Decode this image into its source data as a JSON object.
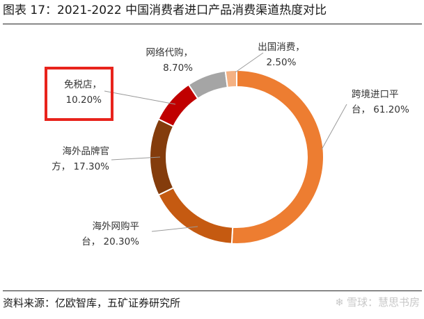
{
  "title": "图表 17：2021-2022 中国消费者进口产品消费渠道热度对比",
  "source": "资料来源：亿欧智库，五矿证券研究所",
  "watermark": "雪球：慧思书房",
  "highlight_color": "#e8231c",
  "chart_data": {
    "type": "pie",
    "style": "donut",
    "start": "top, clockwise",
    "slices": [
      {
        "name": "跨境进口平台",
        "value": 61.2,
        "label_line1": "跨境进口平",
        "label_line2": "台， 61.20%",
        "color": "#ed7d31"
      },
      {
        "name": "海外网购平台",
        "value": 20.3,
        "label_line1": "海外网购平",
        "label_line2": "台， 20.30%",
        "color": "#c55a11"
      },
      {
        "name": "海外品牌官方",
        "value": 17.3,
        "label_line1": "海外品牌官",
        "label_line2": "方， 17.30%",
        "color": "#843c0c"
      },
      {
        "name": "免税店",
        "value": 10.2,
        "label_line1": "免税店，",
        "label_line2": "10.20%",
        "color": "#c00000",
        "highlighted": true
      },
      {
        "name": "网络代购",
        "value": 8.7,
        "label_line1": "网络代购，",
        "label_line2": "8.70%",
        "color": "#a5a5a5"
      },
      {
        "name": "出国消费",
        "value": 2.5,
        "label_line1": "出国消费，",
        "label_line2": "2.50%",
        "color": "#f4b183"
      }
    ]
  }
}
